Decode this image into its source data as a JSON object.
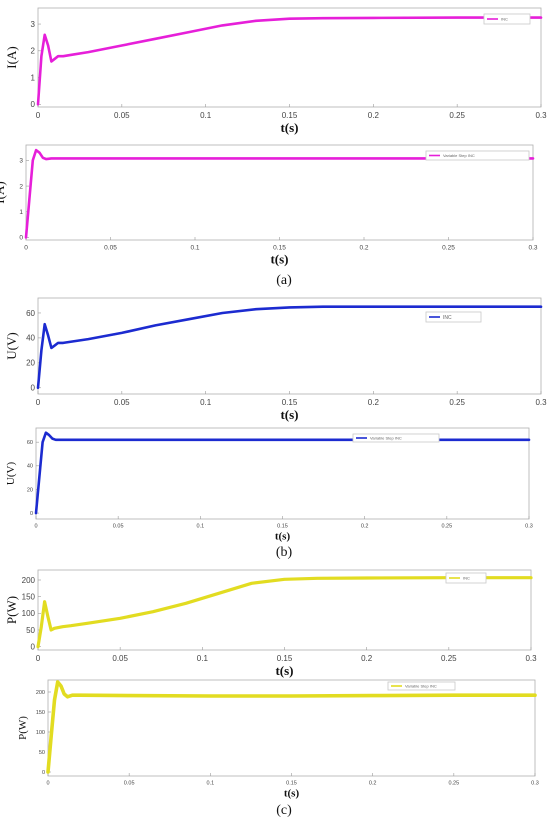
{
  "chart_data": [
    {
      "type": "line",
      "id": "current-inc",
      "xlabel": "t(s)",
      "ylabel": "I(A)",
      "xlim": [
        0,
        0.3
      ],
      "ylim": [
        -0.1,
        3.6
      ],
      "x_ticks": [
        "0",
        "0.05",
        "0.1",
        "0.15",
        "0.2",
        "0.25",
        "0.3"
      ],
      "y_ticks": [
        "0",
        "1",
        "2",
        "3"
      ],
      "grid": false,
      "legend_position": "top-right",
      "series": [
        {
          "name": "INC",
          "color": "#e61fd9",
          "x": [
            0,
            0.002,
            0.004,
            0.006,
            0.008,
            0.01,
            0.012,
            0.015,
            0.02,
            0.03,
            0.05,
            0.07,
            0.09,
            0.11,
            0.13,
            0.15,
            0.17,
            0.2,
            0.25,
            0.3
          ],
          "y": [
            0,
            1.8,
            2.6,
            2.2,
            1.6,
            1.7,
            1.8,
            1.8,
            1.85,
            1.95,
            2.2,
            2.45,
            2.7,
            2.95,
            3.12,
            3.2,
            3.22,
            3.23,
            3.24,
            3.24
          ]
        }
      ]
    },
    {
      "type": "line",
      "id": "current-vs-inc",
      "xlabel": "t(s)",
      "ylabel": "I(A)",
      "xlim": [
        0,
        0.3
      ],
      "ylim": [
        -0.1,
        3.6
      ],
      "x_ticks": [
        "0",
        "0.05",
        "0.1",
        "0.15",
        "0.2",
        "0.25",
        "0.3"
      ],
      "y_ticks": [
        "0",
        "1",
        "2",
        "3"
      ],
      "grid": false,
      "legend_position": "top-right",
      "series": [
        {
          "name": "Variable Step INC",
          "color": "#e61fd9",
          "x": [
            0,
            0.002,
            0.004,
            0.006,
            0.008,
            0.01,
            0.012,
            0.015,
            0.02,
            0.05,
            0.1,
            0.15,
            0.2,
            0.25,
            0.3
          ],
          "y": [
            0,
            1.5,
            3.0,
            3.4,
            3.3,
            3.1,
            3.05,
            3.08,
            3.08,
            3.08,
            3.08,
            3.08,
            3.08,
            3.08,
            3.08
          ]
        }
      ]
    },
    {
      "type": "line",
      "id": "voltage-inc",
      "xlabel": "t(s)",
      "ylabel": "U(V)",
      "xlim": [
        0,
        0.3
      ],
      "ylim": [
        -5,
        72
      ],
      "x_ticks": [
        "0",
        "0.05",
        "0.1",
        "0.15",
        "0.2",
        "0.25",
        "0.3"
      ],
      "y_ticks": [
        "0",
        "20",
        "40",
        "60"
      ],
      "grid": false,
      "legend_position": "top-right",
      "series": [
        {
          "name": "INC",
          "color": "#1c2bd0",
          "x": [
            0,
            0.002,
            0.004,
            0.006,
            0.008,
            0.01,
            0.012,
            0.015,
            0.02,
            0.03,
            0.05,
            0.07,
            0.09,
            0.11,
            0.13,
            0.15,
            0.17,
            0.2,
            0.25,
            0.3
          ],
          "y": [
            0,
            30,
            51,
            42,
            32,
            34,
            36,
            36,
            37,
            39,
            44,
            50,
            55,
            60,
            63,
            64.5,
            65,
            65,
            65,
            65
          ]
        }
      ]
    },
    {
      "type": "line",
      "id": "voltage-vs-inc",
      "xlabel": "t(s)",
      "ylabel": "U(V)",
      "xlim": [
        0,
        0.3
      ],
      "ylim": [
        -5,
        72
      ],
      "x_ticks": [
        "0",
        "0.05",
        "0.1",
        "0.15",
        "0.2",
        "0.25",
        "0.3"
      ],
      "y_ticks": [
        "0",
        "20",
        "40",
        "60"
      ],
      "grid": false,
      "legend_position": "top-right",
      "series": [
        {
          "name": "Variable Step INC",
          "color": "#1c2bd0",
          "x": [
            0,
            0.002,
            0.004,
            0.006,
            0.008,
            0.01,
            0.012,
            0.015,
            0.02,
            0.05,
            0.1,
            0.15,
            0.2,
            0.25,
            0.3
          ],
          "y": [
            0,
            30,
            60,
            68,
            66,
            63,
            62,
            62,
            62,
            62,
            62,
            62,
            62,
            62,
            62
          ]
        }
      ]
    },
    {
      "type": "line",
      "id": "power-inc",
      "xlabel": "t(s)",
      "ylabel": "P(W)",
      "xlim": [
        0,
        0.3
      ],
      "ylim": [
        -10,
        230
      ],
      "x_ticks": [
        "0",
        "0.05",
        "0.1",
        "0.15",
        "0.2",
        "0.25",
        "0.3"
      ],
      "y_ticks": [
        "0",
        "50",
        "100",
        "150",
        "200"
      ],
      "grid": false,
      "legend_position": "top-right",
      "series": [
        {
          "name": "INC",
          "color": "#e2dc21",
          "x": [
            0,
            0.002,
            0.004,
            0.006,
            0.008,
            0.01,
            0.015,
            0.02,
            0.03,
            0.05,
            0.07,
            0.09,
            0.11,
            0.13,
            0.15,
            0.17,
            0.2,
            0.25,
            0.3
          ],
          "y": [
            0,
            60,
            135,
            90,
            50,
            55,
            60,
            63,
            70,
            85,
            105,
            130,
            160,
            190,
            202,
            205,
            206,
            207,
            207
          ]
        }
      ]
    },
    {
      "type": "line",
      "id": "power-vs-inc",
      "xlabel": "t(s)",
      "ylabel": "P(W)",
      "xlim": [
        0,
        0.3
      ],
      "ylim": [
        -10,
        230
      ],
      "x_ticks": [
        "0",
        "0.05",
        "0.1",
        "0.15",
        "0.2",
        "0.25",
        "0.3"
      ],
      "y_ticks": [
        "0",
        "50",
        "100",
        "150",
        "200"
      ],
      "grid": false,
      "legend_position": "top-right",
      "series": [
        {
          "name": "Variable Step INC",
          "color": "#e2dc21",
          "x": [
            0,
            0.002,
            0.004,
            0.006,
            0.008,
            0.01,
            0.012,
            0.015,
            0.02,
            0.05,
            0.1,
            0.15,
            0.2,
            0.25,
            0.3
          ],
          "y": [
            0,
            90,
            180,
            225,
            215,
            195,
            188,
            192,
            192,
            191,
            190,
            190,
            191,
            192,
            192
          ]
        }
      ]
    }
  ],
  "panel_labels": [
    "(a)",
    "(b)",
    "(c)"
  ]
}
